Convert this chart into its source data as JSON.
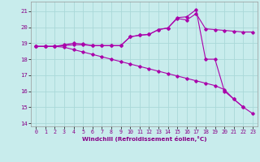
{
  "xlabel": "Windchill (Refroidissement éolien,°C)",
  "bg_color": "#c8ecec",
  "grid_color": "#aad8d8",
  "line_color": "#aa00aa",
  "xlim": [
    -0.5,
    23.5
  ],
  "ylim": [
    13.8,
    21.6
  ],
  "yticks": [
    14,
    15,
    16,
    17,
    18,
    19,
    20,
    21
  ],
  "xticks": [
    0,
    1,
    2,
    3,
    4,
    5,
    6,
    7,
    8,
    9,
    10,
    11,
    12,
    13,
    14,
    15,
    16,
    17,
    18,
    19,
    20,
    21,
    22,
    23
  ],
  "line1_x": [
    0,
    1,
    2,
    3,
    4,
    5,
    6,
    7,
    8,
    9,
    10,
    11,
    12,
    13,
    14,
    15,
    16,
    17,
    18,
    19,
    20,
    21,
    22,
    23
  ],
  "line1_y": [
    18.8,
    18.8,
    18.8,
    18.75,
    18.6,
    18.45,
    18.3,
    18.15,
    18.0,
    17.85,
    17.7,
    17.55,
    17.4,
    17.25,
    17.1,
    16.95,
    16.8,
    16.65,
    16.5,
    16.35,
    16.1,
    15.5,
    15.0,
    14.6
  ],
  "line2_x": [
    0,
    1,
    2,
    3,
    4,
    5,
    6,
    7,
    8,
    9,
    10,
    11,
    12,
    13,
    14,
    15,
    16,
    17,
    18,
    19,
    20,
    21,
    22,
    23
  ],
  "line2_y": [
    18.8,
    18.8,
    18.8,
    18.85,
    18.9,
    18.9,
    18.85,
    18.85,
    18.85,
    18.85,
    19.4,
    19.5,
    19.55,
    19.85,
    19.95,
    20.55,
    20.45,
    20.85,
    19.9,
    19.85,
    19.8,
    19.75,
    19.7,
    19.7
  ],
  "line3_x": [
    0,
    1,
    2,
    3,
    4,
    5,
    6,
    7,
    8,
    9,
    10,
    11,
    12,
    13,
    14,
    15,
    16,
    17,
    18,
    19,
    20,
    21,
    22
  ],
  "line3_y": [
    18.8,
    18.8,
    18.8,
    18.9,
    19.0,
    18.95,
    18.85,
    18.85,
    18.85,
    18.85,
    19.4,
    19.5,
    19.55,
    19.85,
    19.95,
    20.6,
    20.65,
    21.1,
    18.0,
    18.0,
    16.0,
    15.5,
    15.0
  ]
}
